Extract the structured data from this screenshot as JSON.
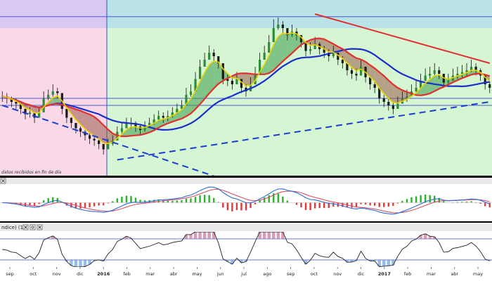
{
  "chart_data": [
    {
      "type": "line",
      "title": "",
      "notice": "datos recibidos en fin de día",
      "x_month_labels": [
        "sep",
        "oct",
        "nov",
        "dic",
        "2016",
        "feb",
        "mar",
        "abr",
        "may",
        "jun",
        "jul",
        "ago",
        "sep",
        "oct",
        "nov",
        "dic",
        "2017",
        "feb",
        "mar",
        "abr",
        "may"
      ],
      "y_range": [
        0,
        100
      ],
      "shaded_regions": [
        {
          "name": "pink-zone",
          "color": "#f9d9e8"
        },
        {
          "name": "violet-zone",
          "color": "#d8c8f2"
        },
        {
          "name": "teal-zone",
          "color": "#b9e3e6"
        },
        {
          "name": "green-zone",
          "color": "#d6f5d2"
        }
      ],
      "horizontal_levels": [
        90.5,
        44,
        40
      ],
      "price_close": [
        45,
        44,
        42,
        41,
        38,
        35,
        36,
        33,
        36,
        44,
        46,
        48,
        47,
        38,
        33,
        30,
        27,
        25,
        23,
        21,
        20,
        18,
        15,
        18,
        20,
        25,
        27,
        30,
        30,
        28,
        26,
        28,
        30,
        32,
        34,
        33,
        34,
        36,
        38,
        40,
        46,
        48,
        55,
        62,
        66,
        70,
        68,
        64,
        55,
        54,
        52,
        55,
        50,
        48,
        52,
        58,
        66,
        70,
        76,
        84,
        86,
        84,
        80,
        82,
        80,
        76,
        71,
        72,
        75,
        72,
        70,
        68,
        70,
        66,
        64,
        60,
        58,
        57,
        62,
        56,
        52,
        50,
        44,
        42,
        40,
        38,
        41,
        44,
        45,
        48,
        50,
        54,
        57,
        58,
        60,
        58,
        53,
        54,
        57,
        58,
        59,
        60,
        62,
        60,
        57,
        52,
        50
      ],
      "price_high": [
        48,
        47,
        45,
        44,
        41,
        38,
        39,
        36,
        39,
        48,
        49,
        52,
        50,
        41,
        36,
        33,
        30,
        28,
        26,
        24,
        23,
        21,
        18,
        21,
        23,
        28,
        30,
        33,
        33,
        31,
        29,
        31,
        33,
        35,
        37,
        36,
        37,
        39,
        41,
        43,
        50,
        52,
        59,
        66,
        70,
        74,
        72,
        68,
        59,
        58,
        56,
        59,
        54,
        52,
        56,
        62,
        70,
        74,
        80,
        89,
        90,
        88,
        84,
        86,
        84,
        80,
        75,
        76,
        79,
        76,
        74,
        72,
        74,
        70,
        68,
        64,
        62,
        61,
        66,
        60,
        56,
        54,
        48,
        46,
        44,
        42,
        45,
        48,
        49,
        52,
        54,
        58,
        61,
        62,
        64,
        62,
        57,
        58,
        61,
        62,
        63,
        64,
        66,
        64,
        61,
        56,
        54
      ],
      "price_low": [
        42,
        41,
        39,
        38,
        35,
        32,
        33,
        30,
        33,
        41,
        43,
        45,
        44,
        35,
        30,
        27,
        24,
        22,
        20,
        18,
        17,
        15,
        12,
        15,
        17,
        22,
        24,
        27,
        27,
        25,
        23,
        25,
        27,
        29,
        31,
        30,
        31,
        33,
        35,
        37,
        43,
        45,
        52,
        59,
        63,
        67,
        65,
        61,
        52,
        51,
        49,
        52,
        47,
        45,
        49,
        55,
        63,
        67,
        73,
        81,
        83,
        81,
        77,
        79,
        77,
        73,
        68,
        69,
        72,
        69,
        67,
        65,
        67,
        63,
        61,
        57,
        55,
        54,
        59,
        53,
        49,
        47,
        41,
        39,
        37,
        35,
        38,
        41,
        42,
        45,
        47,
        51,
        54,
        55,
        57,
        55,
        50,
        51,
        54,
        55,
        56,
        57,
        59,
        57,
        54,
        49,
        47
      ],
      "series": [
        {
          "name": "ma-fast",
          "color": "#e8d400"
        },
        {
          "name": "ma-medium",
          "color": "#e03030"
        },
        {
          "name": "ma-slow",
          "color": "#1a2ec8"
        }
      ],
      "trendlines": [
        {
          "name": "resistance-trend",
          "color": "#e03030",
          "style": "solid",
          "from": [
            68,
            92
          ],
          "to": [
            106,
            64
          ]
        },
        {
          "name": "support-trend",
          "color": "#1a3ed0",
          "style": "dashed",
          "from": [
            25,
            9
          ],
          "to": [
            106,
            42
          ]
        },
        {
          "name": "falling-trend",
          "color": "#1a3ed0",
          "style": "dashed",
          "from": [
            0,
            40
          ],
          "to": [
            48,
            -2
          ]
        }
      ],
      "grid": false
    },
    {
      "type": "line",
      "title": "",
      "legend": "",
      "y_range": [
        -100,
        100
      ],
      "series": [
        {
          "name": "macd-line",
          "color": "#2b6fd6"
        },
        {
          "name": "signal-line",
          "color": "#d9506a"
        }
      ],
      "histogram_colors": {
        "positive": "#28b428",
        "negative": "#e03a3a"
      }
    },
    {
      "type": "line",
      "title": "",
      "legend": "ndice) (14)",
      "y_range": [
        -100,
        100
      ],
      "levels": [
        60,
        -60
      ],
      "series": [
        {
          "name": "oscillator-line",
          "color": "#222222"
        }
      ],
      "fill_colors": {
        "above": "#c8709a",
        "below": "#6aa0e6"
      }
    }
  ],
  "ui": {
    "icons": [
      "close-icon",
      "close-icon",
      "settings-icon",
      "close-icon"
    ]
  }
}
